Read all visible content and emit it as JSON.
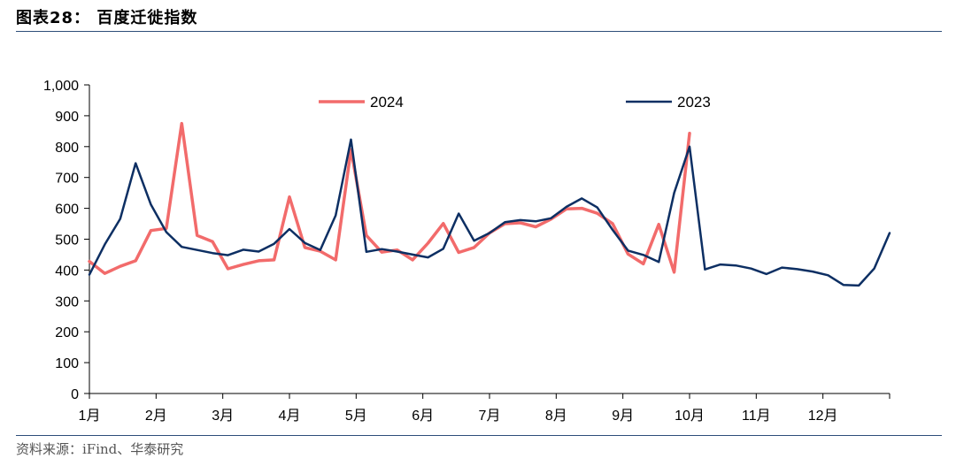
{
  "header": {
    "title": "图表28：  百度迁徙指数"
  },
  "footer": {
    "source": "资料来源：iFind、华泰研究"
  },
  "chart_data": {
    "type": "line",
    "x_axis": {
      "ticks": [
        "1月",
        "2月",
        "3月",
        "4月",
        "5月",
        "6月",
        "7月",
        "8月",
        "9月",
        "10月",
        "11月",
        "12月"
      ]
    },
    "y_axis": {
      "ylim": [
        0,
        1000
      ],
      "ticks": [
        "0",
        "100",
        "200",
        "300",
        "400",
        "500",
        "600",
        "700",
        "800",
        "900",
        "1,000"
      ]
    },
    "legend_placement": "top",
    "grid": false,
    "series": [
      {
        "name": "2024",
        "color": "#f26b6b",
        "values": [
          428,
          389,
          412,
          430,
          528,
          535,
          875,
          512,
          492,
          404,
          418,
          430,
          433,
          637,
          473,
          461,
          433,
          790,
          512,
          458,
          465,
          433,
          487,
          551,
          457,
          473,
          520,
          550,
          553,
          540,
          565,
          598,
          600,
          584,
          550,
          452,
          420,
          548,
          393,
          843
        ]
      },
      {
        "name": "2023",
        "color": "#0d2f63",
        "values": [
          385,
          483,
          566,
          746,
          612,
          523,
          475,
          465,
          455,
          448,
          466,
          460,
          485,
          533,
          488,
          465,
          577,
          823,
          459,
          468,
          460,
          450,
          441,
          469,
          583,
          495,
          520,
          555,
          562,
          558,
          568,
          605,
          632,
          603,
          530,
          463,
          449,
          426,
          650,
          800,
          402,
          418,
          415,
          405,
          387,
          408,
          403,
          395,
          383,
          352,
          350,
          405,
          520
        ]
      }
    ]
  }
}
